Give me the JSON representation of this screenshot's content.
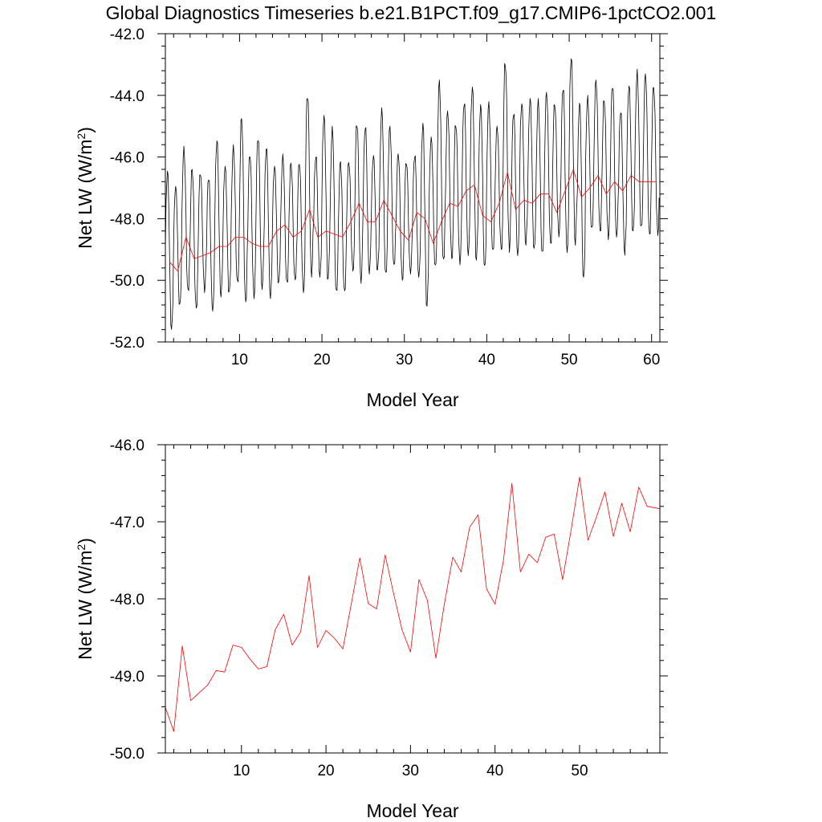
{
  "title": "Global Diagnostics Timeseries b.e21.B1PCT.f09_g17.CMIP6-1pctCO2.001",
  "colors": {
    "monthly": "#000000",
    "annual": "#ff0000",
    "axes": "#000000",
    "background": "#ffffff"
  },
  "chart_data": [
    {
      "type": "line",
      "title": "Global Diagnostics Timeseries b.e21.B1PCT.f09_g17.CMIP6-1pctCO2.001",
      "xlabel": "Model Year",
      "ylabel": "Net LW (W/m2)",
      "ylabel_parts": {
        "main": "Net LW (W/m",
        "sup": "2",
        "end": ")"
      },
      "xlim": [
        1,
        61
      ],
      "ylim": [
        -52.0,
        -42.0
      ],
      "xticks": [
        10,
        20,
        30,
        40,
        50,
        60
      ],
      "xtick_labels": [
        "10",
        "20",
        "30",
        "40",
        "50",
        "60"
      ],
      "yticks": [
        -52.0,
        -50.0,
        -48.0,
        -46.0,
        -44.0,
        -42.0
      ],
      "ytick_labels": [
        "-52.0",
        "-50.0",
        "-48.0",
        "-46.0",
        "-44.0",
        "-42.0"
      ],
      "grid": false,
      "series": [
        {
          "color": "#000000",
          "monthly_from_year": 1,
          "monthly_peaks": [
            -46.35,
            -46.95,
            -45.65,
            -46.4,
            -46.4,
            -46.7,
            -45.35,
            -46.3,
            -45.6,
            -44.75,
            -45.8,
            -45.4,
            -45.6,
            -46.3,
            -45.9,
            -46.2,
            -46.1,
            -44.0,
            -45.9,
            -44.65,
            -45.0,
            -46.15,
            -46.1,
            -44.9,
            -44.95,
            -45.95,
            -44.4,
            -45.0,
            -45.85,
            -46.15,
            -45.9,
            -44.9,
            -45.35,
            -43.5,
            -44.5,
            -44.9,
            -44.2,
            -43.7,
            -44.3,
            -44.2,
            -45.0,
            -42.85,
            -44.55,
            -44.2,
            -44.1,
            -44.1,
            -43.9,
            -44.2,
            -43.75,
            -42.65,
            -44.25,
            -44.0,
            -43.5,
            -44.05,
            -43.7,
            -44.4,
            -43.7,
            -43.15,
            -43.3,
            -43.6
          ],
          "monthly_troughs": [
            -51.7,
            -50.8,
            -50.5,
            -50.9,
            -50.4,
            -51.0,
            -50.6,
            -50.4,
            -50.2,
            -50.7,
            -50.6,
            -50.3,
            -50.6,
            -50.1,
            -50.2,
            -50.0,
            -50.4,
            -49.9,
            -49.9,
            -50.0,
            -50.5,
            -50.4,
            -49.7,
            -50.1,
            -49.8,
            -49.7,
            -49.9,
            -49.6,
            -50.0,
            -49.8,
            -49.9,
            -50.9,
            -49.6,
            -49.5,
            -49.3,
            -49.5,
            -49.2,
            -49.4,
            -49.6,
            -49.2,
            -49.0,
            -49.1,
            -49.2,
            -48.9,
            -49.0,
            -49.3,
            -48.8,
            -48.6,
            -49.1,
            -48.9,
            -49.9,
            -48.5,
            -48.4,
            -48.7,
            -48.6,
            -49.2,
            -48.4,
            -48.5,
            -48.5,
            -48.6
          ]
        },
        {
          "color": "#ff0000",
          "x": [
            1.5,
            2.5,
            3.5,
            4.5,
            5.5,
            6.5,
            7.5,
            8.5,
            9.5,
            10.5,
            11.5,
            12.5,
            13.5,
            14.5,
            15.5,
            16.5,
            17.5,
            18.5,
            19.5,
            20.5,
            21.5,
            22.5,
            23.5,
            24.5,
            25.5,
            26.5,
            27.5,
            28.5,
            29.5,
            30.5,
            31.5,
            32.5,
            33.5,
            34.5,
            35.5,
            36.5,
            37.5,
            38.5,
            39.5,
            40.5,
            41.5,
            42.5,
            43.5,
            44.5,
            45.5,
            46.5,
            47.5,
            48.5,
            49.5,
            50.5,
            51.5,
            52.5,
            53.5,
            54.5,
            55.5,
            56.5,
            57.5,
            58.5,
            59.5,
            60.5
          ],
          "y": [
            -49.4,
            -49.7,
            -48.6,
            -49.3,
            -49.2,
            -49.1,
            -48.9,
            -48.9,
            -48.6,
            -48.6,
            -48.8,
            -48.9,
            -48.9,
            -48.4,
            -48.2,
            -48.6,
            -48.4,
            -47.7,
            -48.6,
            -48.4,
            -48.5,
            -48.6,
            -48.1,
            -47.5,
            -48.1,
            -48.1,
            -47.4,
            -47.9,
            -48.4,
            -48.7,
            -47.8,
            -48.0,
            -48.8,
            -48.1,
            -47.5,
            -47.6,
            -47.1,
            -46.9,
            -47.9,
            -48.1,
            -47.5,
            -46.5,
            -47.7,
            -47.4,
            -47.5,
            -47.2,
            -47.2,
            -47.8,
            -47.1,
            -46.4,
            -47.3,
            -47.0,
            -46.6,
            -47.2,
            -46.8,
            -47.1,
            -46.6,
            -46.8,
            -46.8,
            -46.8
          ]
        }
      ]
    },
    {
      "type": "line",
      "xlabel": "Model Year",
      "ylabel": "Net LW (W/m2)",
      "ylabel_parts": {
        "main": "Net LW (W/m",
        "sup": "2",
        "end": ")"
      },
      "xlim": [
        1,
        59.5
      ],
      "ylim": [
        -50.0,
        -46.0
      ],
      "xticks": [
        10,
        20,
        30,
        40,
        50
      ],
      "xtick_labels": [
        "10",
        "20",
        "30",
        "40",
        "50"
      ],
      "yticks": [
        -50.0,
        -49.0,
        -48.0,
        -47.0,
        -46.0
      ],
      "ytick_labels": [
        "-50.0",
        "-49.0",
        "-48.0",
        "-47.0",
        "-46.0"
      ],
      "grid": false,
      "series": [
        {
          "color": "#ff0000",
          "x": [
            1,
            2,
            3,
            4,
            5,
            6,
            7,
            8,
            9,
            10,
            11,
            12,
            13,
            14,
            15,
            16,
            17,
            18,
            19,
            20,
            21,
            22,
            23,
            24,
            25,
            26,
            27,
            28,
            29,
            30,
            31,
            32,
            33,
            34,
            35,
            36,
            37,
            38,
            39,
            40,
            41,
            42,
            43,
            44,
            45,
            46,
            47,
            48,
            49,
            50,
            51,
            52,
            53,
            54,
            55,
            56,
            57,
            58,
            59,
            59.5
          ],
          "y": [
            -49.41,
            -49.72,
            -48.61,
            -49.32,
            -49.22,
            -49.12,
            -48.93,
            -48.95,
            -48.6,
            -48.63,
            -48.78,
            -48.91,
            -48.88,
            -48.4,
            -48.2,
            -48.6,
            -48.43,
            -47.7,
            -48.63,
            -48.41,
            -48.51,
            -48.65,
            -48.06,
            -47.47,
            -48.06,
            -48.13,
            -47.43,
            -47.93,
            -48.4,
            -48.69,
            -47.75,
            -48.02,
            -48.77,
            -48.07,
            -47.46,
            -47.65,
            -47.07,
            -46.91,
            -47.87,
            -48.07,
            -47.5,
            -46.5,
            -47.65,
            -47.42,
            -47.53,
            -47.2,
            -47.16,
            -47.75,
            -47.11,
            -46.42,
            -47.24,
            -46.94,
            -46.61,
            -47.19,
            -46.76,
            -47.13,
            -46.55,
            -46.8,
            -46.82,
            -46.83
          ]
        }
      ]
    }
  ]
}
